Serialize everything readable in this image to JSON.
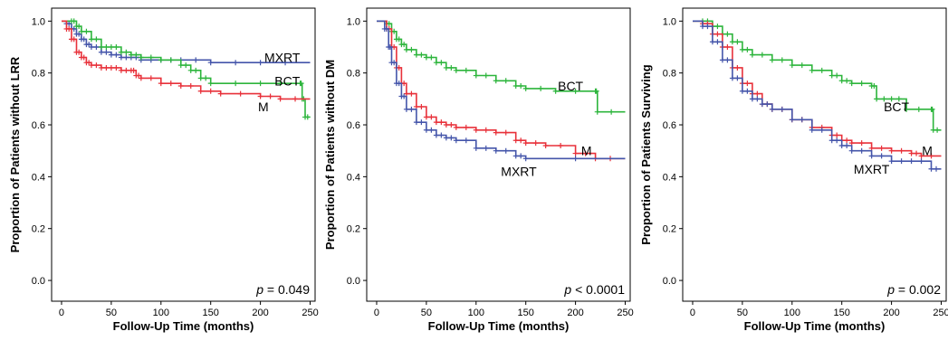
{
  "colors": {
    "MXRT": "#4455aa",
    "M": "#e8313a",
    "BCT": "#2db53c"
  },
  "chart_data": [
    {
      "type": "line",
      "ylabel": "Proportion of Patients without LRR",
      "xlabel": "Follow-Up Time (months)",
      "xlim": [
        -10,
        255
      ],
      "ylim": [
        -0.08,
        1.05
      ],
      "xticks": [
        "0",
        "50",
        "100",
        "150",
        "200",
        "250"
      ],
      "yticks": [
        "0.0",
        "0.2",
        "0.4",
        "0.6",
        "0.8",
        "1.0"
      ],
      "pvalue": {
        "prefix": "p",
        "rest": " = 0.049"
      },
      "series": [
        {
          "name": "MXRT",
          "label_pos": [
            222,
            0.86
          ],
          "points": [
            [
              0,
              1.0
            ],
            [
              5,
              0.99
            ],
            [
              10,
              0.97
            ],
            [
              15,
              0.95
            ],
            [
              20,
              0.93
            ],
            [
              25,
              0.91
            ],
            [
              30,
              0.9
            ],
            [
              40,
              0.88
            ],
            [
              50,
              0.87
            ],
            [
              60,
              0.86
            ],
            [
              70,
              0.86
            ],
            [
              80,
              0.85
            ],
            [
              100,
              0.85
            ],
            [
              120,
              0.85
            ],
            [
              150,
              0.84
            ],
            [
              200,
              0.84
            ],
            [
              250,
              0.84
            ]
          ]
        },
        {
          "name": "BCT",
          "label_pos": [
            227,
            0.77
          ],
          "points": [
            [
              0,
              1.0
            ],
            [
              10,
              1.0
            ],
            [
              15,
              0.98
            ],
            [
              20,
              0.96
            ],
            [
              30,
              0.93
            ],
            [
              40,
              0.9
            ],
            [
              50,
              0.9
            ],
            [
              60,
              0.88
            ],
            [
              70,
              0.87
            ],
            [
              80,
              0.86
            ],
            [
              100,
              0.85
            ],
            [
              120,
              0.83
            ],
            [
              130,
              0.81
            ],
            [
              140,
              0.78
            ],
            [
              150,
              0.76
            ],
            [
              200,
              0.76
            ],
            [
              240,
              0.76
            ],
            [
              242,
              0.7
            ],
            [
              245,
              0.63
            ],
            [
              250,
              0.63
            ]
          ]
        },
        {
          "name": "M",
          "label_pos": [
            203,
            0.67
          ],
          "points": [
            [
              0,
              1.0
            ],
            [
              5,
              0.97
            ],
            [
              10,
              0.93
            ],
            [
              15,
              0.88
            ],
            [
              20,
              0.86
            ],
            [
              25,
              0.84
            ],
            [
              30,
              0.83
            ],
            [
              40,
              0.82
            ],
            [
              50,
              0.82
            ],
            [
              60,
              0.81
            ],
            [
              70,
              0.81
            ],
            [
              75,
              0.79
            ],
            [
              80,
              0.78
            ],
            [
              100,
              0.76
            ],
            [
              120,
              0.75
            ],
            [
              140,
              0.73
            ],
            [
              160,
              0.72
            ],
            [
              200,
              0.71
            ],
            [
              220,
              0.7
            ],
            [
              250,
              0.7
            ]
          ]
        }
      ]
    },
    {
      "type": "line",
      "ylabel": "Proportion of Patients without DM",
      "xlabel": "Follow-Up Time (months)",
      "xlim": [
        -10,
        255
      ],
      "ylim": [
        -0.08,
        1.05
      ],
      "xticks": [
        "0",
        "50",
        "100",
        "150",
        "200",
        "250"
      ],
      "yticks": [
        "0.0",
        "0.2",
        "0.4",
        "0.6",
        "0.8",
        "1.0"
      ],
      "pvalue": {
        "prefix": "p",
        "rest": " < 0.0001"
      },
      "series": [
        {
          "name": "BCT",
          "label_pos": [
            195,
            0.75
          ],
          "points": [
            [
              0,
              1.0
            ],
            [
              10,
              0.99
            ],
            [
              15,
              0.96
            ],
            [
              20,
              0.93
            ],
            [
              25,
              0.91
            ],
            [
              30,
              0.89
            ],
            [
              40,
              0.87
            ],
            [
              50,
              0.86
            ],
            [
              60,
              0.84
            ],
            [
              70,
              0.82
            ],
            [
              80,
              0.81
            ],
            [
              100,
              0.79
            ],
            [
              120,
              0.77
            ],
            [
              140,
              0.75
            ],
            [
              150,
              0.74
            ],
            [
              180,
              0.73
            ],
            [
              220,
              0.73
            ],
            [
              222,
              0.65
            ],
            [
              250,
              0.65
            ]
          ]
        },
        {
          "name": "M",
          "label_pos": [
            211,
            0.5
          ],
          "points": [
            [
              0,
              1.0
            ],
            [
              10,
              0.97
            ],
            [
              15,
              0.9
            ],
            [
              20,
              0.82
            ],
            [
              25,
              0.76
            ],
            [
              30,
              0.72
            ],
            [
              40,
              0.67
            ],
            [
              50,
              0.63
            ],
            [
              60,
              0.61
            ],
            [
              70,
              0.6
            ],
            [
              80,
              0.59
            ],
            [
              100,
              0.58
            ],
            [
              120,
              0.57
            ],
            [
              140,
              0.54
            ],
            [
              150,
              0.53
            ],
            [
              170,
              0.52
            ],
            [
              200,
              0.49
            ],
            [
              220,
              0.47
            ],
            [
              250,
              0.47
            ]
          ]
        },
        {
          "name": "MXRT",
          "label_pos": [
            143,
            0.42
          ],
          "points": [
            [
              0,
              1.0
            ],
            [
              8,
              0.97
            ],
            [
              12,
              0.9
            ],
            [
              15,
              0.84
            ],
            [
              20,
              0.76
            ],
            [
              25,
              0.71
            ],
            [
              30,
              0.66
            ],
            [
              40,
              0.61
            ],
            [
              50,
              0.58
            ],
            [
              60,
              0.56
            ],
            [
              70,
              0.55
            ],
            [
              80,
              0.54
            ],
            [
              100,
              0.51
            ],
            [
              120,
              0.5
            ],
            [
              140,
              0.48
            ],
            [
              150,
              0.47
            ],
            [
              250,
              0.47
            ]
          ]
        }
      ]
    },
    {
      "type": "line",
      "ylabel": "Proportion of Patients Surviving",
      "xlabel": "Follow-Up Time (months)",
      "xlim": [
        -10,
        255
      ],
      "ylim": [
        -0.08,
        1.05
      ],
      "xticks": [
        "0",
        "50",
        "100",
        "150",
        "200",
        "250"
      ],
      "yticks": [
        "0.0",
        "0.2",
        "0.4",
        "0.6",
        "0.8",
        "1.0"
      ],
      "pvalue": {
        "prefix": "p",
        "rest": " = 0.002"
      },
      "series": [
        {
          "name": "BCT",
          "label_pos": [
            205,
            0.67
          ],
          "points": [
            [
              0,
              1.0
            ],
            [
              10,
              1.0
            ],
            [
              20,
              0.98
            ],
            [
              30,
              0.95
            ],
            [
              40,
              0.92
            ],
            [
              50,
              0.89
            ],
            [
              60,
              0.87
            ],
            [
              80,
              0.85
            ],
            [
              100,
              0.83
            ],
            [
              120,
              0.81
            ],
            [
              140,
              0.79
            ],
            [
              150,
              0.77
            ],
            [
              160,
              0.76
            ],
            [
              180,
              0.75
            ],
            [
              185,
              0.7
            ],
            [
              200,
              0.7
            ],
            [
              215,
              0.66
            ],
            [
              240,
              0.66
            ],
            [
              242,
              0.58
            ],
            [
              250,
              0.58
            ]
          ]
        },
        {
          "name": "M",
          "label_pos": [
            236,
            0.5
          ],
          "points": [
            [
              0,
              1.0
            ],
            [
              10,
              0.99
            ],
            [
              20,
              0.95
            ],
            [
              30,
              0.9
            ],
            [
              40,
              0.82
            ],
            [
              50,
              0.76
            ],
            [
              60,
              0.72
            ],
            [
              70,
              0.68
            ],
            [
              80,
              0.66
            ],
            [
              100,
              0.62
            ],
            [
              120,
              0.59
            ],
            [
              140,
              0.56
            ],
            [
              150,
              0.54
            ],
            [
              160,
              0.53
            ],
            [
              180,
              0.51
            ],
            [
              200,
              0.5
            ],
            [
              220,
              0.49
            ],
            [
              230,
              0.48
            ],
            [
              250,
              0.48
            ]
          ]
        },
        {
          "name": "MXRT",
          "label_pos": [
            180,
            0.43
          ],
          "points": [
            [
              0,
              1.0
            ],
            [
              10,
              0.98
            ],
            [
              20,
              0.92
            ],
            [
              30,
              0.85
            ],
            [
              40,
              0.78
            ],
            [
              50,
              0.73
            ],
            [
              60,
              0.7
            ],
            [
              70,
              0.68
            ],
            [
              80,
              0.66
            ],
            [
              100,
              0.62
            ],
            [
              120,
              0.58
            ],
            [
              140,
              0.54
            ],
            [
              150,
              0.52
            ],
            [
              160,
              0.5
            ],
            [
              180,
              0.48
            ],
            [
              200,
              0.46
            ],
            [
              220,
              0.46
            ],
            [
              240,
              0.43
            ],
            [
              250,
              0.43
            ]
          ]
        }
      ]
    }
  ]
}
